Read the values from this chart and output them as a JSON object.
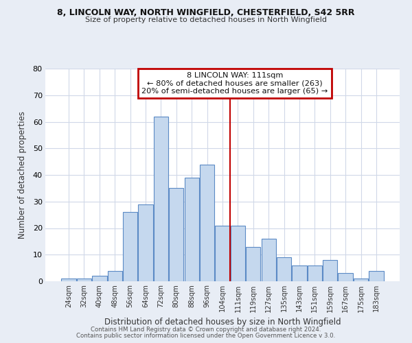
{
  "title1": "8, LINCOLN WAY, NORTH WINGFIELD, CHESTERFIELD, S42 5RR",
  "title2": "Size of property relative to detached houses in North Wingfield",
  "xlabel": "Distribution of detached houses by size in North Wingfield",
  "ylabel": "Number of detached properties",
  "bar_labels": [
    "24sqm",
    "32sqm",
    "40sqm",
    "48sqm",
    "56sqm",
    "64sqm",
    "72sqm",
    "80sqm",
    "88sqm",
    "96sqm",
    "104sqm",
    "111sqm",
    "119sqm",
    "127sqm",
    "135sqm",
    "143sqm",
    "151sqm",
    "159sqm",
    "167sqm",
    "175sqm",
    "183sqm"
  ],
  "bar_values": [
    1,
    1,
    2,
    4,
    26,
    29,
    62,
    35,
    39,
    44,
    21,
    21,
    13,
    16,
    9,
    6,
    6,
    8,
    3,
    1,
    4
  ],
  "bar_color": "#c5d8ee",
  "bar_edge_color": "#5b8ac5",
  "vline_x_index": 11,
  "vline_color": "#c00000",
  "annotation_title": "8 LINCOLN WAY: 111sqm",
  "annotation_line1": "← 80% of detached houses are smaller (263)",
  "annotation_line2": "20% of semi-detached houses are larger (65) →",
  "annotation_box_edgecolor": "#c00000",
  "ylim": [
    0,
    80
  ],
  "yticks": [
    0,
    10,
    20,
    30,
    40,
    50,
    60,
    70,
    80
  ],
  "bg_color": "#e8edf5",
  "plot_bg_color": "#ffffff",
  "grid_color": "#d0d8e8",
  "footer1": "Contains HM Land Registry data © Crown copyright and database right 2024.",
  "footer2": "Contains public sector information licensed under the Open Government Licence v 3.0."
}
